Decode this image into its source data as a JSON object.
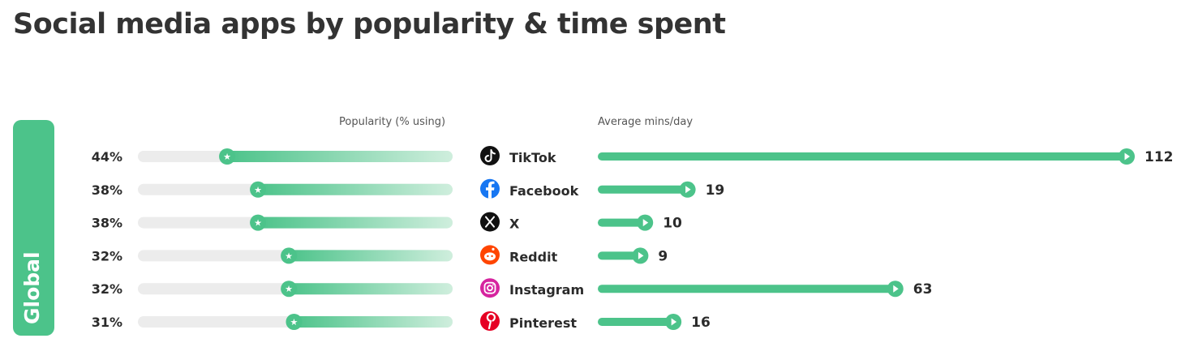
{
  "title": "Social media apps by popularity & time spent",
  "region": "Global",
  "colors": {
    "accent": "#4cc38a",
    "track": "#ececec"
  },
  "chart_data": {
    "type": "bar",
    "title": "Social media apps by popularity & time spent",
    "categories": [
      "TikTok",
      "Facebook",
      "X",
      "Reddit",
      "Instagram",
      "Pinterest"
    ],
    "series": [
      {
        "name": "Popularity (% using)",
        "values": [
          44,
          38,
          38,
          32,
          32,
          31
        ],
        "labels": [
          "44%",
          "38%",
          "38%",
          "32%",
          "32%",
          "31%"
        ]
      },
      {
        "name": "Average mins/day",
        "values": [
          112,
          19,
          10,
          9,
          63,
          16
        ],
        "labels": [
          "112",
          "19",
          "10",
          "9",
          "63",
          "16"
        ]
      }
    ],
    "icons": [
      "tiktok-icon",
      "facebook-icon",
      "x-icon",
      "reddit-icon",
      "instagram-icon",
      "pinterest-icon"
    ]
  }
}
